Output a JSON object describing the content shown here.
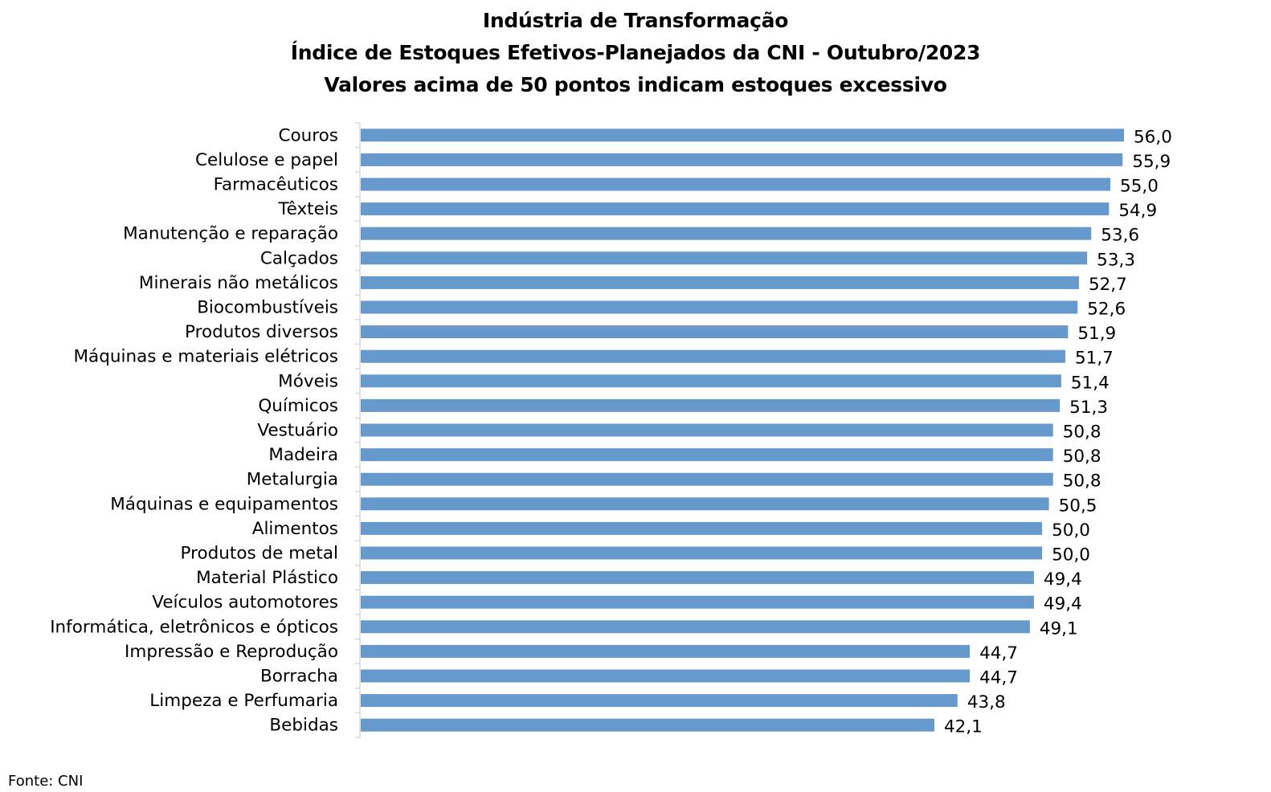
{
  "chart_data": {
    "type": "bar",
    "orientation": "horizontal",
    "title": [
      "Indústria de Transformação",
      "Índice de Estoques Efetivos-Planejados da CNI - Outubro/2023",
      "Valores acima de 50 pontos indicam estoques excessivo"
    ],
    "categories": [
      "Couros",
      "Celulose e papel",
      "Farmacêuticos",
      "Têxteis",
      "Manutenção e reparação",
      "Calçados",
      "Minerais não metálicos",
      "Biocombustíveis",
      "Produtos diversos",
      "Máquinas e materiais elétricos",
      "Móveis",
      "Químicos",
      "Vestuário",
      "Madeira",
      "Metalurgia",
      "Máquinas e equipamentos",
      "Alimentos",
      "Produtos de metal",
      "Material Plástico",
      "Veículos automotores",
      "Informática, eletrônicos e ópticos",
      "Impressão e Reprodução",
      "Borracha",
      "Limpeza e Perfumaria",
      "Bebidas"
    ],
    "values": [
      56.0,
      55.9,
      55.0,
      54.9,
      53.6,
      53.3,
      52.7,
      52.6,
      51.9,
      51.7,
      51.4,
      51.3,
      50.8,
      50.8,
      50.8,
      50.5,
      50.0,
      50.0,
      49.4,
      49.4,
      49.1,
      44.7,
      44.7,
      43.8,
      42.1
    ],
    "value_labels": [
      "56,0",
      "55,9",
      "55,0",
      "54,9",
      "53,6",
      "53,3",
      "52,7",
      "52,6",
      "51,9",
      "51,7",
      "51,4",
      "51,3",
      "50,8",
      "50,8",
      "50,8",
      "50,5",
      "50,0",
      "50,0",
      "49,4",
      "49,4",
      "49,1",
      "44,7",
      "44,7",
      "43,8",
      "42,1"
    ],
    "xlim": [
      0,
      56
    ],
    "grid": false,
    "legend": "none",
    "bar_color": "#6699cc"
  },
  "source": "Fonte: CNI"
}
